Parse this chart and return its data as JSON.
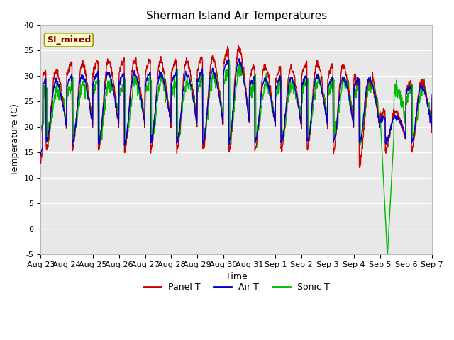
{
  "title": "Sherman Island Air Temperatures",
  "xlabel": "Time",
  "ylabel": "Temperature (C)",
  "ylim": [
    -5,
    40
  ],
  "xlim": [
    0,
    360
  ],
  "tick_labels": [
    "Aug 23",
    "Aug 24",
    "Aug 25",
    "Aug 26",
    "Aug 27",
    "Aug 28",
    "Aug 29",
    "Aug 30",
    "Aug 31",
    "Sep 1",
    "Sep 2",
    "Sep 3",
    "Sep 4",
    "Sep 5",
    "Sep 6",
    "Sep 7"
  ],
  "yticks": [
    -5,
    0,
    5,
    10,
    15,
    20,
    25,
    30,
    35,
    40
  ],
  "legend_label": "SI_mixed",
  "legend_entries": [
    "Panel T",
    "Air T",
    "Sonic T"
  ],
  "line_colors": [
    "#cc0000",
    "#0000cc",
    "#00bb00"
  ],
  "plot_bg": "#e8e8e8",
  "title_fontsize": 11,
  "axis_fontsize": 9,
  "tick_fontsize": 8,
  "legend_fontsize": 9
}
